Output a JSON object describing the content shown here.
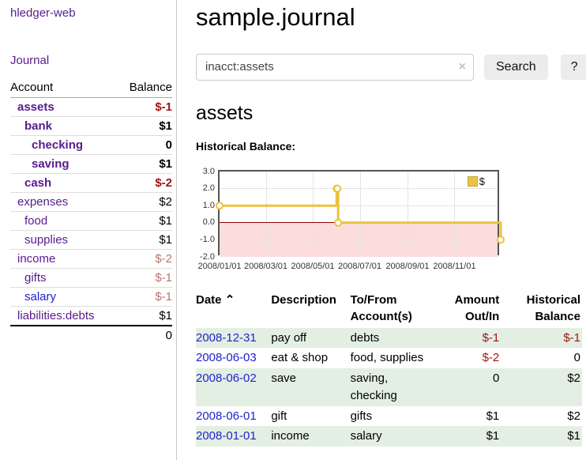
{
  "sidebar": {
    "brand": "hledger-web",
    "nav": {
      "journal": "Journal"
    },
    "accounts_table": {
      "headers": {
        "account": "Account",
        "balance": "Balance"
      },
      "rows": [
        {
          "name": "assets",
          "balance": "$-1"
        },
        {
          "name": "bank",
          "balance": "$1"
        },
        {
          "name": "checking",
          "balance": "0"
        },
        {
          "name": "saving",
          "balance": "$1"
        },
        {
          "name": "cash",
          "balance": "$-2"
        },
        {
          "name": "expenses",
          "balance": "$2"
        },
        {
          "name": "food",
          "balance": "$1"
        },
        {
          "name": "supplies",
          "balance": "$1"
        },
        {
          "name": "income",
          "balance": "$-2"
        },
        {
          "name": "gifts",
          "balance": "$-1"
        },
        {
          "name": "salary",
          "balance": "$-1"
        },
        {
          "name": "liabilities:debts",
          "balance": "$1"
        }
      ],
      "total": "0"
    }
  },
  "main": {
    "title": "sample.journal",
    "search": {
      "value": "inacct:assets",
      "clear_icon": "×",
      "button": "Search",
      "help_button": "?"
    },
    "account_heading": "assets",
    "chart_label": "Historical Balance:",
    "register": {
      "headers": {
        "date": "Date",
        "sort_icon": "⌃",
        "description": "Description",
        "accounts": "To/From Account(s)",
        "amount": "Amount Out/In",
        "balance": "Historical Balance"
      },
      "rows": [
        {
          "date": "2008-12-31",
          "description": "pay off",
          "accounts": "debts",
          "amount": "$-1",
          "balance": "$-1"
        },
        {
          "date": "2008-06-03",
          "description": "eat & shop",
          "accounts": "food, supplies",
          "amount": "$-2",
          "balance": "0"
        },
        {
          "date": "2008-06-02",
          "description": "save",
          "accounts": "saving, checking",
          "amount": "0",
          "balance": "$2"
        },
        {
          "date": "2008-06-01",
          "description": "gift",
          "accounts": "gifts",
          "amount": "$1",
          "balance": "$2"
        },
        {
          "date": "2008-01-01",
          "description": "income",
          "accounts": "salary",
          "amount": "$1",
          "balance": "$1"
        }
      ]
    }
  },
  "chart_data": {
    "type": "line",
    "step": true,
    "title": "Historical Balance:",
    "xlim": [
      "2008-01-01",
      "2008-12-31"
    ],
    "ylim": [
      -2,
      3
    ],
    "grid": true,
    "y_ticks": [
      {
        "v": 3,
        "label": "3.0"
      },
      {
        "v": 2,
        "label": "2.0"
      },
      {
        "v": 1,
        "label": "1.0"
      },
      {
        "v": 0,
        "label": "0.0"
      },
      {
        "v": -1,
        "label": "-1.0"
      },
      {
        "v": -2,
        "label": "-2.0"
      }
    ],
    "x_ticks": [
      {
        "date": "2008-01-01",
        "label": "2008/01/01"
      },
      {
        "date": "2008-03-01",
        "label": "2008/03/01"
      },
      {
        "date": "2008-05-01",
        "label": "2008/05/01"
      },
      {
        "date": "2008-07-01",
        "label": "2008/07/01"
      },
      {
        "date": "2008-09-01",
        "label": "2008/09/01"
      },
      {
        "date": "2008-11-01",
        "label": "2008/11/01"
      }
    ],
    "series": [
      {
        "name": "$",
        "color": "#edc240",
        "marker_fill": "#ffffff",
        "points": [
          [
            "2008-01-01",
            1
          ],
          [
            "2008-06-01",
            2
          ],
          [
            "2008-06-02",
            2
          ],
          [
            "2008-06-03",
            0
          ],
          [
            "2008-12-31",
            -1
          ]
        ]
      }
    ],
    "legend": {
      "label": "$",
      "position": "top-right"
    },
    "negative_region_color": "#fcdcdc",
    "zero_line_color": "#8b0000"
  },
  "colors": {
    "link_purple": "#571c8d",
    "link_blue": "#2222cc",
    "negative_strong": "#9d1313",
    "negative_muted": "#b97471",
    "row_stripe_green": "#e3efe3",
    "series_gold": "#edc240"
  }
}
